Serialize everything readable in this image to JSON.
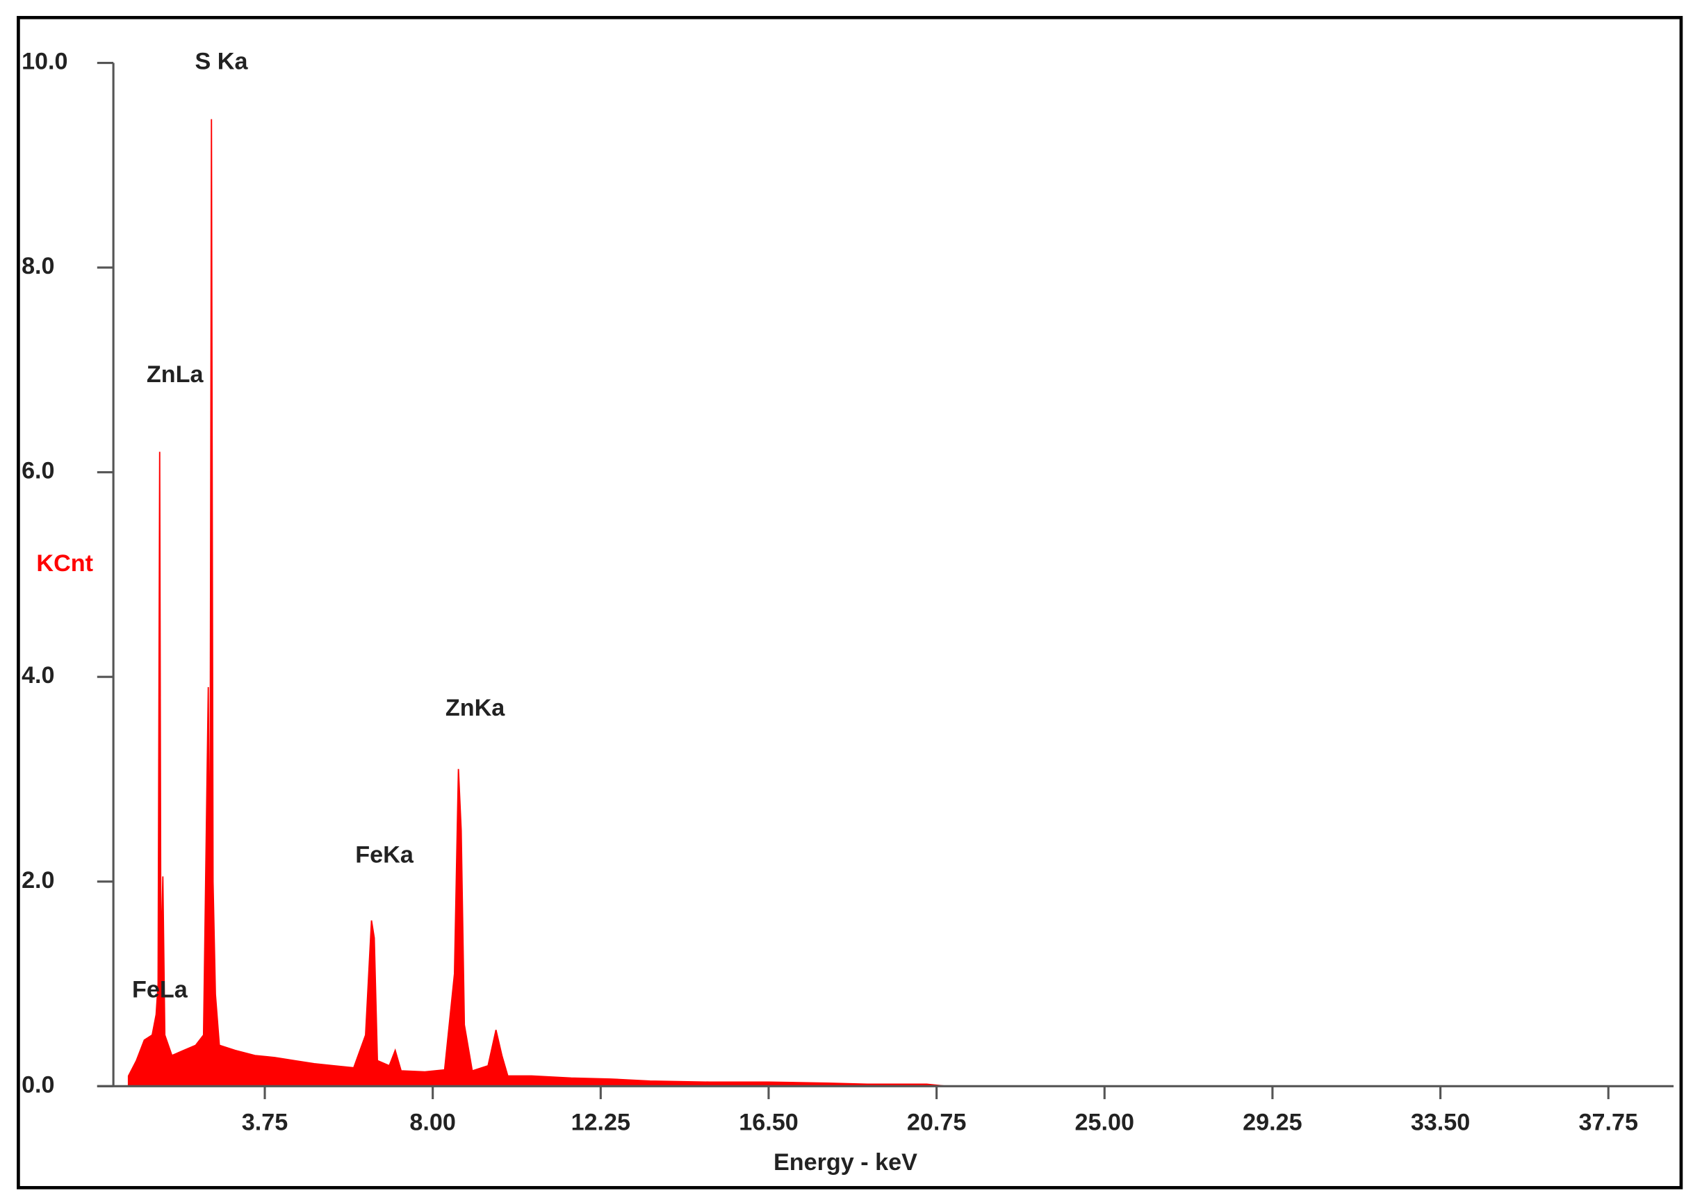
{
  "chart_data": {
    "type": "area",
    "x_label": "Energy - keV",
    "y_label": "KCnt",
    "color": "#ff0000",
    "annotations": [
      "S Ka",
      "ZnLa",
      "ZnKa",
      "FeKa",
      "FeLa"
    ],
    "x": [
      0.3,
      0.5,
      0.7,
      0.9,
      1.0,
      1.05,
      1.09,
      1.12,
      1.17,
      1.22,
      1.4,
      1.7,
      2.0,
      2.2,
      2.32,
      2.36,
      2.4,
      2.44,
      2.5,
      2.6,
      3.0,
      3.5,
      4.0,
      4.5,
      5.0,
      5.5,
      6.0,
      6.3,
      6.45,
      6.52,
      6.6,
      6.9,
      7.05,
      7.2,
      7.8,
      8.3,
      8.55,
      8.65,
      8.72,
      8.8,
      9.0,
      9.4,
      9.6,
      9.75,
      9.9,
      10.5,
      11.5,
      12.5,
      13.5,
      15,
      16.5,
      18,
      19,
      20.5,
      21,
      39.4
    ],
    "values": [
      0.1,
      0.25,
      0.45,
      0.5,
      0.7,
      1.0,
      6.2,
      1.2,
      2.05,
      0.5,
      0.3,
      0.35,
      0.4,
      0.5,
      3.9,
      1.5,
      9.45,
      2.0,
      0.9,
      0.4,
      0.35,
      0.3,
      0.28,
      0.25,
      0.22,
      0.2,
      0.18,
      0.5,
      1.62,
      1.45,
      0.25,
      0.2,
      0.35,
      0.15,
      0.14,
      0.16,
      1.1,
      3.1,
      2.5,
      0.6,
      0.15,
      0.2,
      0.55,
      0.3,
      0.1,
      0.1,
      0.08,
      0.07,
      0.05,
      0.04,
      0.04,
      0.03,
      0.02,
      0.02,
      0,
      0
    ],
    "xlim": [
      0,
      39.4
    ],
    "ylim": [
      0,
      10
    ],
    "xticks": [
      3.75,
      {
        "value": 8,
        "label": "8.00"
      },
      12.25,
      {
        "value": 16.5,
        "label": "16.50"
      },
      20.75,
      {
        "value": 25,
        "label": "25.00"
      },
      29.25,
      {
        "value": 33.5,
        "label": "33.50"
      },
      37.75
    ],
    "yticks": [
      {
        "value": 0,
        "label": "0.0"
      },
      {
        "value": 2,
        "label": "2.0"
      },
      {
        "value": 4,
        "label": "4.0"
      },
      {
        "value": 6,
        "label": "6.0"
      },
      {
        "value": 8,
        "label": "8.0"
      },
      {
        "value": 10,
        "label": "10.0"
      }
    ]
  }
}
